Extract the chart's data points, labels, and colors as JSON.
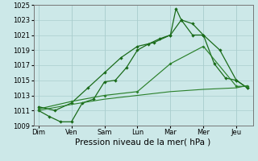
{
  "x_labels": [
    "Dim",
    "Ven",
    "Sam",
    "Lun",
    "Mar",
    "Mer",
    "Jeu"
  ],
  "x_positions": [
    0,
    1,
    2,
    3,
    4,
    5,
    6
  ],
  "lines": [
    {
      "name": "top_zigzag",
      "x": [
        0,
        0.33,
        0.67,
        1.0,
        1.33,
        1.67,
        2.0,
        2.33,
        2.67,
        3.0,
        3.33,
        3.67,
        4.0,
        4.17,
        4.33,
        4.67,
        5.0,
        5.33,
        5.67,
        6.0,
        6.33
      ],
      "y": [
        1011,
        1010.2,
        1009.5,
        1009.5,
        1012,
        1012.5,
        1014.8,
        1015,
        1016.7,
        1019,
        1019.8,
        1020.5,
        1021,
        1024.5,
        1023,
        1021,
        1021,
        1017.2,
        1015.3,
        1015,
        1014
      ],
      "color": "#1a6b1a",
      "linewidth": 0.9,
      "marker": "D",
      "markersize": 2.2
    },
    {
      "name": "second_line",
      "x": [
        0,
        0.5,
        1.0,
        1.5,
        2.0,
        2.5,
        3.0,
        3.5,
        4.0,
        4.33,
        4.67,
        5.0,
        5.5,
        6.0,
        6.33
      ],
      "y": [
        1011.5,
        1011,
        1012,
        1014,
        1016,
        1018,
        1019.5,
        1020,
        1021,
        1023,
        1022.5,
        1021,
        1019,
        1015,
        1014
      ],
      "color": "#1a6b1a",
      "linewidth": 0.9,
      "marker": "D",
      "markersize": 2.2
    },
    {
      "name": "smooth_line",
      "x": [
        0,
        1,
        2,
        3,
        4,
        5,
        6,
        6.33
      ],
      "y": [
        1011.2,
        1012.2,
        1013.0,
        1013.5,
        1017.2,
        1019.5,
        1014.2,
        1014.2
      ],
      "color": "#2a802a",
      "linewidth": 0.85,
      "marker": "D",
      "markersize": 2.0
    },
    {
      "name": "flat_line",
      "x": [
        0,
        1,
        2,
        3,
        4,
        5,
        6,
        6.33
      ],
      "y": [
        1011,
        1011.8,
        1012.5,
        1013.0,
        1013.5,
        1013.8,
        1014.0,
        1014.3
      ],
      "color": "#2a802a",
      "linewidth": 0.8,
      "marker": null,
      "markersize": 0
    }
  ],
  "ylim": [
    1009,
    1025
  ],
  "yticks": [
    1009,
    1011,
    1013,
    1015,
    1017,
    1019,
    1021,
    1023,
    1025
  ],
  "xlim": [
    -0.15,
    6.5
  ],
  "xlabel": "Pression niveau de la mer( hPa )",
  "background_color": "#cce8e8",
  "grid_color": "#aacece",
  "tick_fontsize": 6,
  "xlabel_fontsize": 7.5
}
